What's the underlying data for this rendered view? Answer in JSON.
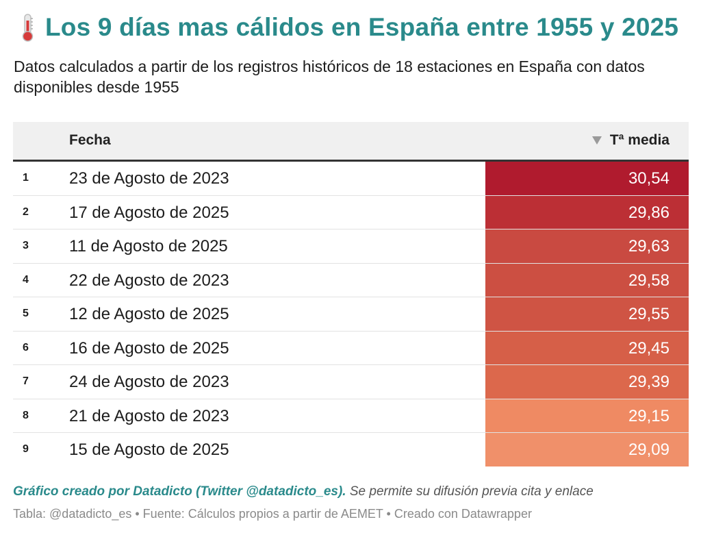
{
  "header": {
    "title": "Los 9 días mas cálidos en España entre 1955 y 2025",
    "title_icon": "thermometer-icon",
    "subtitle": "Datos calculados a partir de los registros históricos de 18 estaciones en España con datos disponibles desde 1955"
  },
  "chart_data": {
    "type": "table",
    "columns": [
      "",
      "Fecha",
      "Tª media"
    ],
    "sorted_column": "Tª media",
    "sort_order": "descending",
    "rows": [
      {
        "rank": "1",
        "date": "23 de Agosto de 2023",
        "value": 30.54,
        "value_label": "30,54",
        "color": "#b01b2e"
      },
      {
        "rank": "2",
        "date": "17 de Agosto de 2025",
        "value": 29.86,
        "value_label": "29,86",
        "color": "#bc2f35"
      },
      {
        "rank": "3",
        "date": "11 de Agosto de 2025",
        "value": 29.63,
        "value_label": "29,63",
        "color": "#c94a41"
      },
      {
        "rank": "4",
        "date": "22 de Agosto de 2023",
        "value": 29.58,
        "value_label": "29,58",
        "color": "#cc4f42"
      },
      {
        "rank": "5",
        "date": "12 de Agosto de 2025",
        "value": 29.55,
        "value_label": "29,55",
        "color": "#cf5444"
      },
      {
        "rank": "6",
        "date": "16 de Agosto de 2025",
        "value": 29.45,
        "value_label": "29,45",
        "color": "#d65f48"
      },
      {
        "rank": "7",
        "date": "24 de Agosto de 2023",
        "value": 29.39,
        "value_label": "29,39",
        "color": "#dc684c"
      },
      {
        "rank": "8",
        "date": "21 de Agosto de 2023",
        "value": 29.15,
        "value_label": "29,15",
        "color": "#ef8a63"
      },
      {
        "rank": "9",
        "date": "15 de Agosto de 2025",
        "value": 29.09,
        "value_label": "29,09",
        "color": "#f0906a"
      }
    ]
  },
  "footer": {
    "credit_strong": "Gráfico creado por Datadicto (Twitter @datadicto_es).",
    "credit_rest": " Se permite su difusión previa cita y enlace",
    "source": "Tabla: @datadicto_es • Fuente: Cálculos propios a partir de AEMET • Creado con Datawrapper"
  }
}
